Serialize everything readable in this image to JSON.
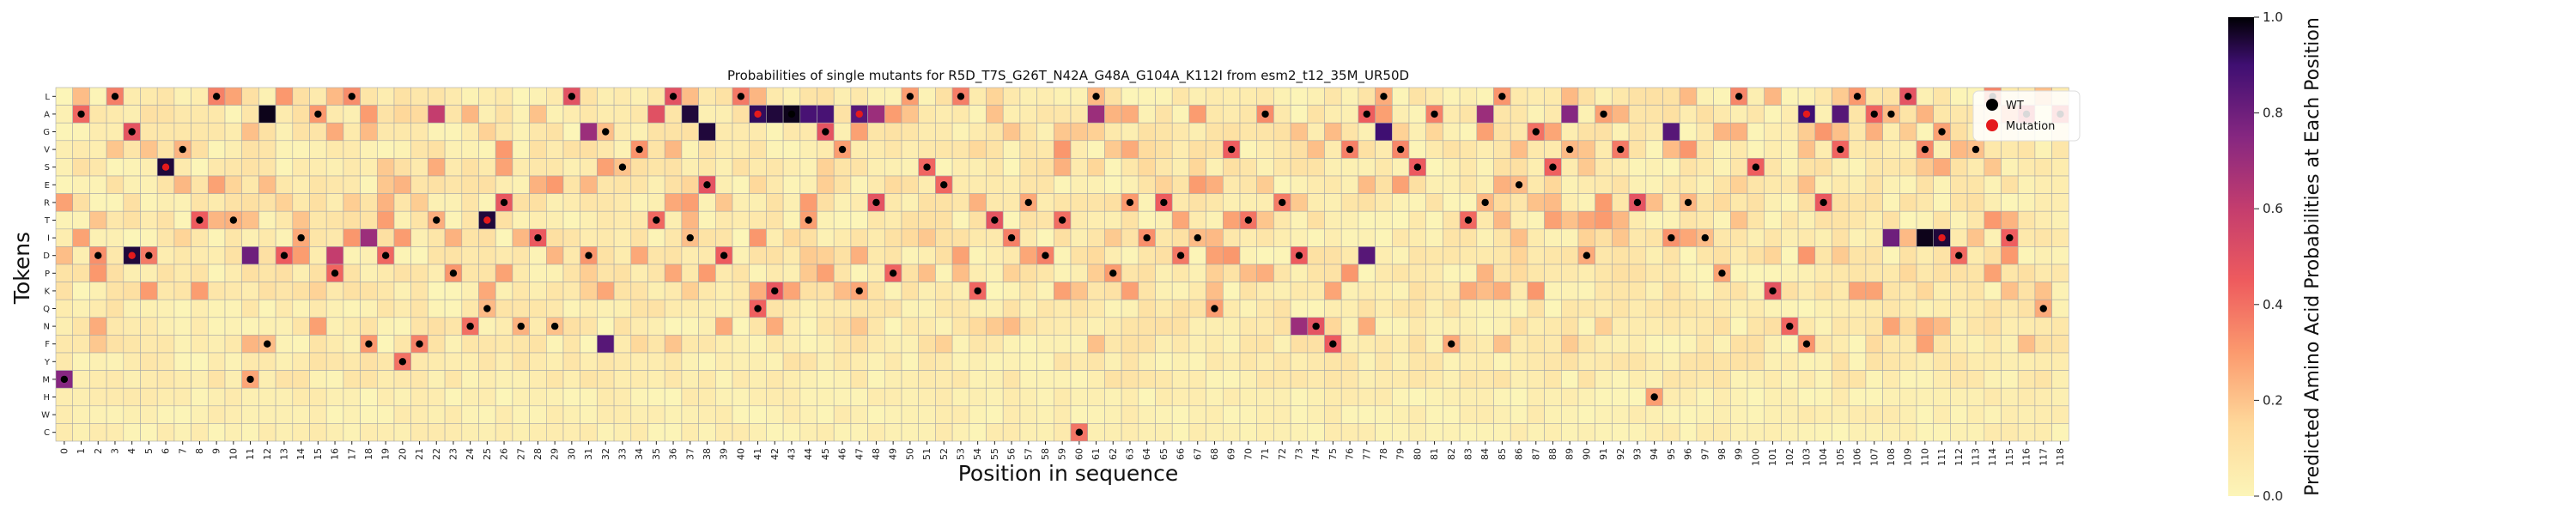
{
  "chart_data": {
    "type": "heatmap",
    "title": "Probabilities of single mutants for R5D_T7S_G26T_N42A_G48A_G104A_K112I from esm2_t12_35M_UR50D",
    "xlabel": "Position in sequence",
    "ylabel": "Tokens",
    "tokens": [
      "L",
      "A",
      "G",
      "V",
      "S",
      "E",
      "R",
      "T",
      "I",
      "D",
      "P",
      "K",
      "Q",
      "N",
      "F",
      "Y",
      "M",
      "H",
      "W",
      "C"
    ],
    "positions": [
      0,
      1,
      2,
      3,
      4,
      5,
      6,
      7,
      8,
      9,
      10,
      11,
      12,
      13,
      14,
      15,
      16,
      17,
      18,
      19,
      20,
      21,
      22,
      23,
      24,
      25,
      26,
      27,
      28,
      29,
      30,
      31,
      32,
      33,
      34,
      35,
      36,
      37,
      38,
      39,
      40,
      41,
      42,
      43,
      44,
      45,
      46,
      47,
      48,
      49,
      50,
      51,
      52,
      53,
      54,
      55,
      56,
      57,
      58,
      59,
      60,
      61,
      62,
      63,
      64,
      65,
      66,
      67,
      68,
      69,
      70,
      71,
      72,
      73,
      74,
      75,
      76,
      77,
      78,
      79,
      80,
      81,
      82,
      83,
      84,
      85,
      86,
      87,
      88,
      89,
      90,
      91,
      92,
      93,
      94,
      95,
      96,
      97,
      98,
      99,
      100,
      101,
      102,
      103,
      104,
      105,
      106,
      107,
      108,
      109,
      110,
      111,
      112,
      113,
      114,
      115,
      116,
      117,
      118
    ],
    "wt_sequence": "MADLGDSVTLTMFDIAPLFDYFTPNQRNINLDGSVTLIEDLQKATGVKRPLSELKTIRDTCLPRIRDIQVTARDNFVALVSAFTRLEGSVDAVRHIRIPLSKNFRVLAALVGDVLIAQAL",
    "mutations": [
      {
        "position": 4,
        "wt": "D",
        "mut": "D"
      },
      {
        "position": 6,
        "wt": "S",
        "mut": "S"
      },
      {
        "position": 25,
        "wt": "T",
        "mut": "T"
      },
      {
        "position": 41,
        "wt": "A",
        "mut": "A"
      },
      {
        "position": 47,
        "wt": "A",
        "mut": "A"
      },
      {
        "position": 103,
        "wt": "A",
        "mut": "A"
      },
      {
        "position": 111,
        "wt": "I",
        "mut": "I"
      }
    ],
    "strong_cells": [
      {
        "position": 0,
        "token": "M",
        "value": 0.75
      },
      {
        "position": 4,
        "token": "D",
        "value": 0.95
      },
      {
        "position": 6,
        "token": "S",
        "value": 0.95
      },
      {
        "position": 12,
        "token": "A",
        "value": 0.98
      },
      {
        "position": 11,
        "token": "D",
        "value": 0.8
      },
      {
        "position": 16,
        "token": "D",
        "value": 0.6
      },
      {
        "position": 18,
        "token": "I",
        "value": 0.7
      },
      {
        "position": 22,
        "token": "A",
        "value": 0.6
      },
      {
        "position": 25,
        "token": "T",
        "value": 0.95
      },
      {
        "position": 31,
        "token": "G",
        "value": 0.7
      },
      {
        "position": 32,
        "token": "F",
        "value": 0.85
      },
      {
        "position": 35,
        "token": "A",
        "value": 0.5
      },
      {
        "position": 37,
        "token": "A",
        "value": 0.95
      },
      {
        "position": 38,
        "token": "G",
        "value": 0.95
      },
      {
        "position": 41,
        "token": "A",
        "value": 0.92
      },
      {
        "position": 42,
        "token": "A",
        "value": 0.95
      },
      {
        "position": 43,
        "token": "A",
        "value": 0.98
      },
      {
        "position": 44,
        "token": "A",
        "value": 0.88
      },
      {
        "position": 45,
        "token": "A",
        "value": 0.88
      },
      {
        "position": 47,
        "token": "A",
        "value": 0.85
      },
      {
        "position": 48,
        "token": "A",
        "value": 0.7
      },
      {
        "position": 61,
        "token": "A",
        "value": 0.7
      },
      {
        "position": 73,
        "token": "N",
        "value": 0.7
      },
      {
        "position": 77,
        "token": "D",
        "value": 0.85
      },
      {
        "position": 78,
        "token": "G",
        "value": 0.9
      },
      {
        "position": 84,
        "token": "A",
        "value": 0.7
      },
      {
        "position": 89,
        "token": "A",
        "value": 0.75
      },
      {
        "position": 95,
        "token": "G",
        "value": 0.85
      },
      {
        "position": 103,
        "token": "A",
        "value": 0.9
      },
      {
        "position": 105,
        "token": "A",
        "value": 0.85
      },
      {
        "position": 108,
        "token": "I",
        "value": 0.8
      },
      {
        "position": 110,
        "token": "I",
        "value": 0.98
      },
      {
        "position": 111,
        "token": "I",
        "value": 0.95
      }
    ],
    "colorbar": {
      "label": "Predicted Amino Acid Probabilities at Each Position",
      "range": [
        0,
        1
      ],
      "ticks": [
        "0.0",
        "0.2",
        "0.4",
        "0.6",
        "0.8",
        "1.0"
      ],
      "colormap": "magma_r"
    },
    "legend": {
      "placement": "top-right",
      "entries": [
        {
          "label": "WT",
          "color": "#000000"
        },
        {
          "label": "Mutation",
          "color": "#e41a1c"
        }
      ]
    }
  }
}
